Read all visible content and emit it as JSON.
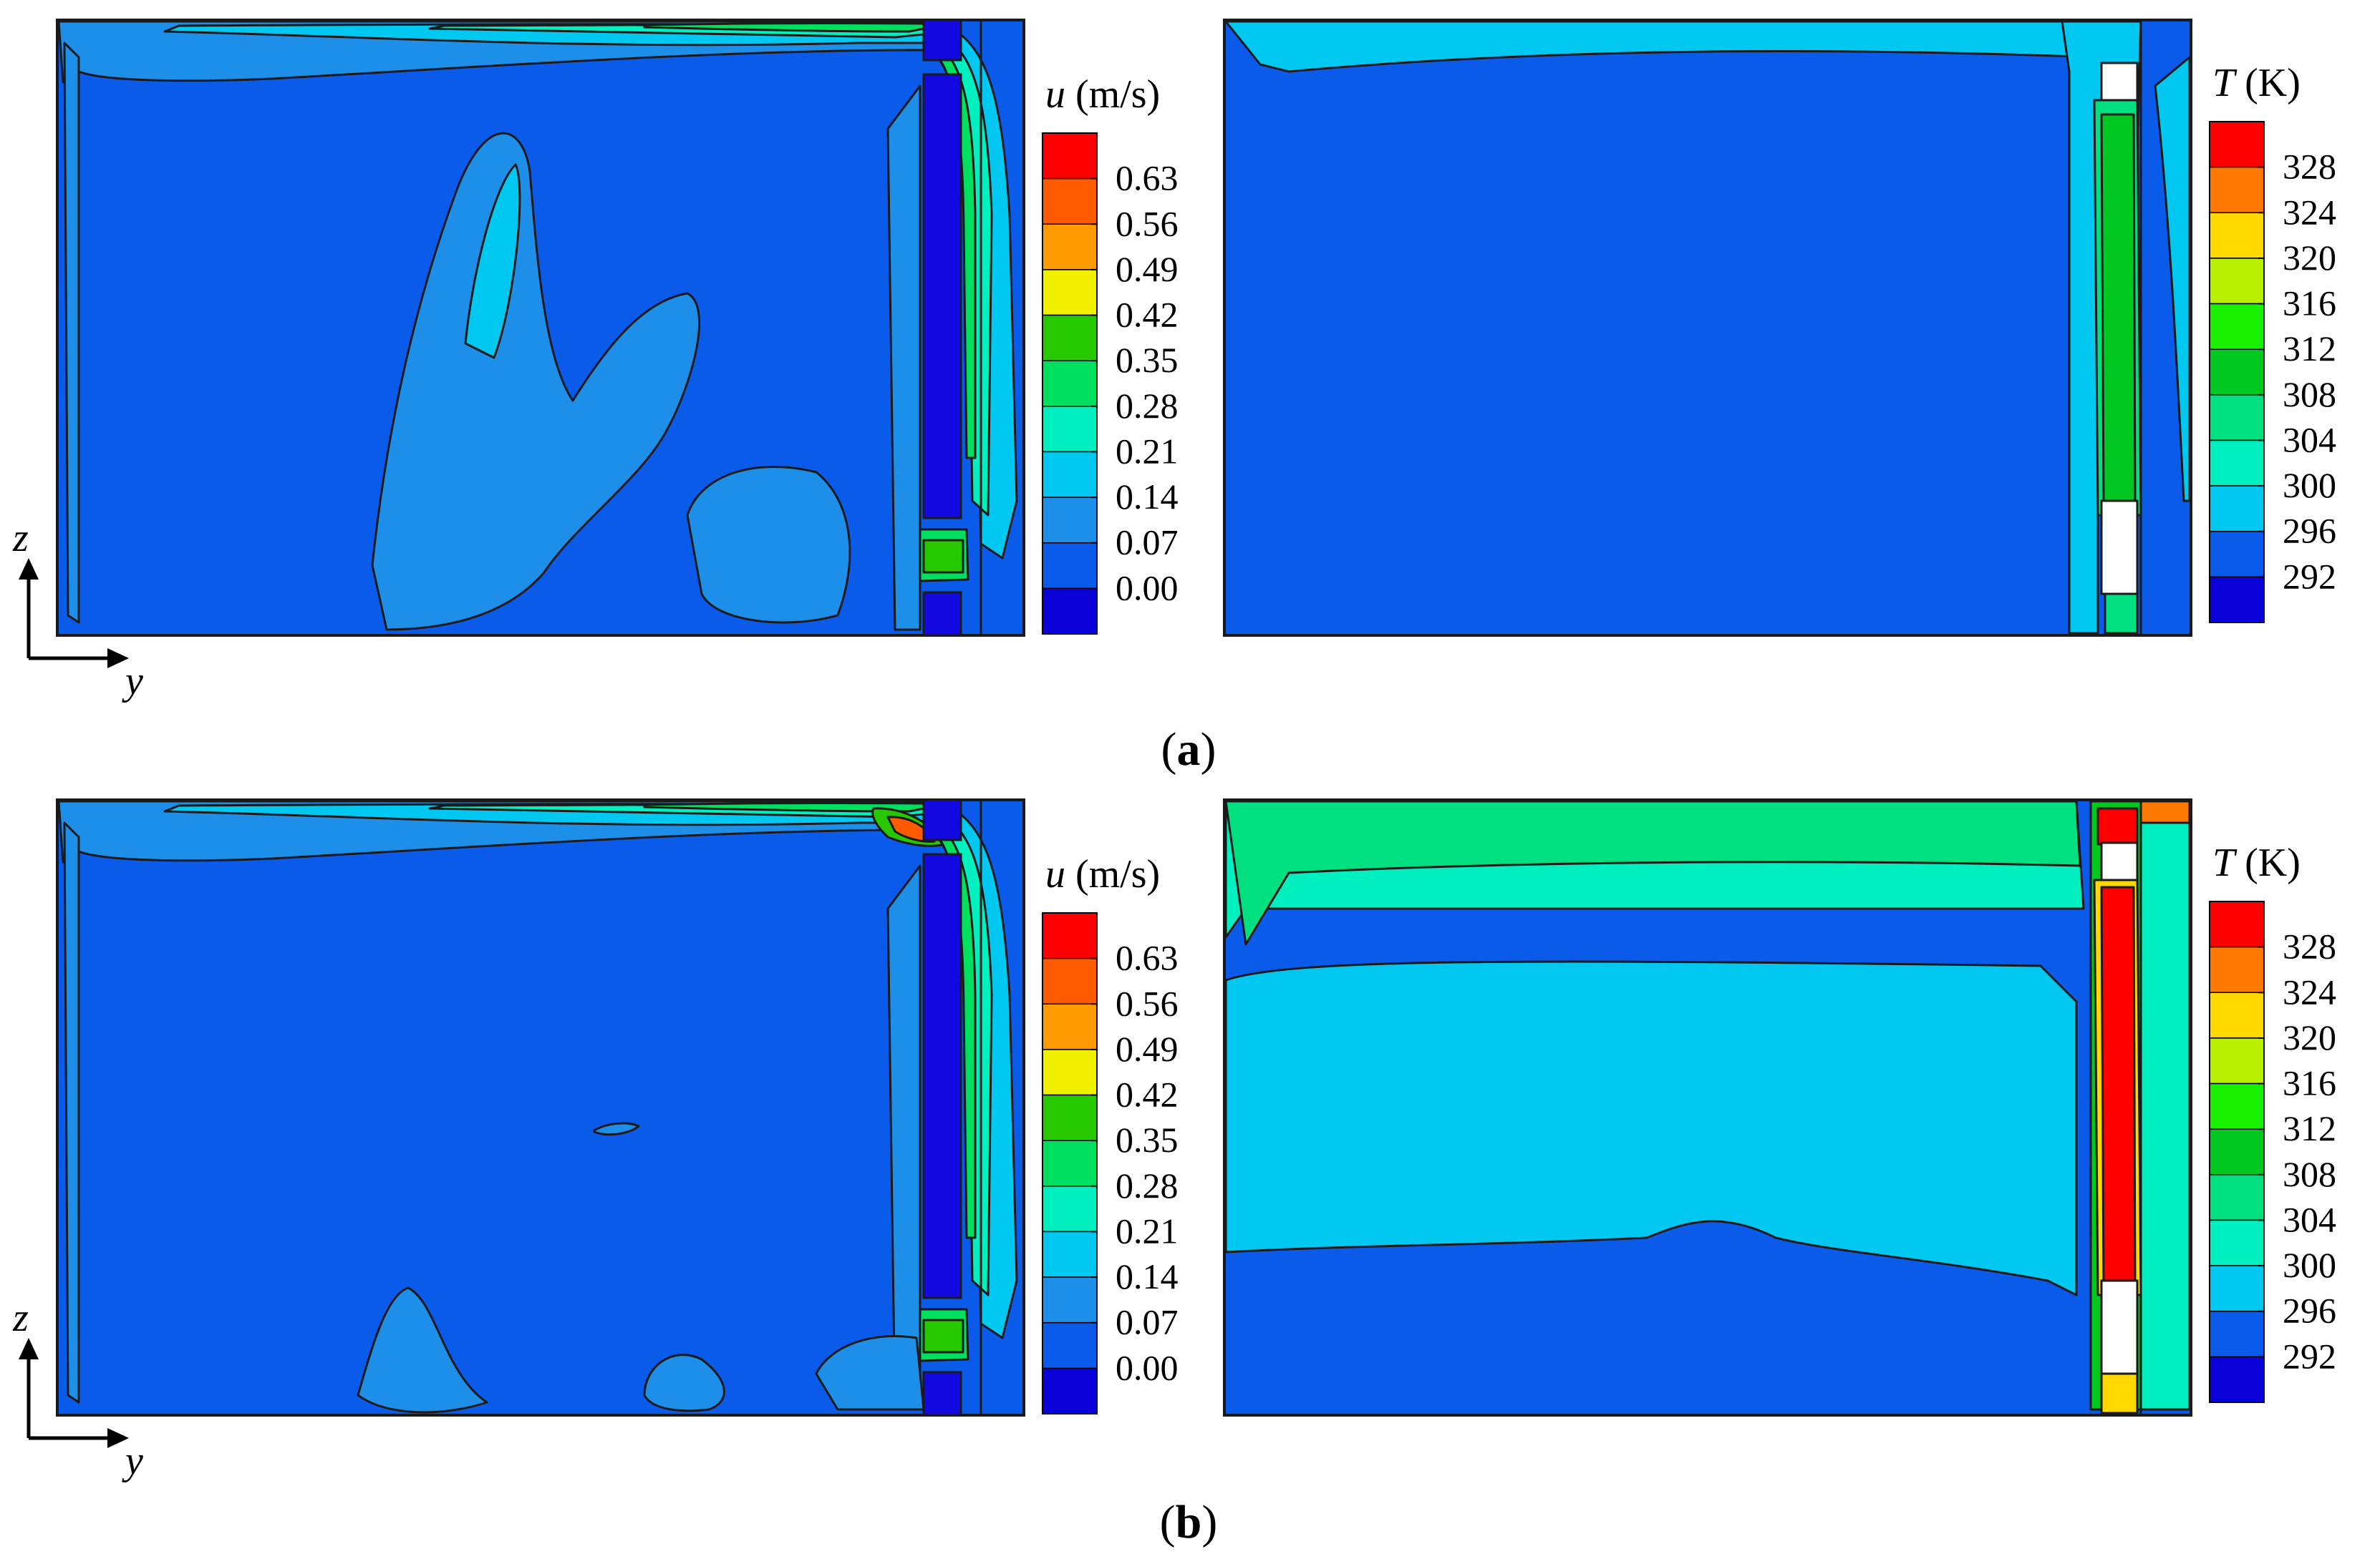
{
  "panels": [
    {
      "label_open": "(",
      "label_letter": "a",
      "label_close": ")"
    },
    {
      "label_open": "(",
      "label_letter": "b",
      "label_close": ")"
    }
  ],
  "axes": {
    "z": "z",
    "y": "y"
  },
  "colors": {
    "levels_u": [
      "#0a00d8",
      "#0a5bea",
      "#1e8fe8",
      "#00c8f0",
      "#00f0c0",
      "#00e060",
      "#28c800",
      "#f0f000",
      "#ff9a00",
      "#ff5a00",
      "#ff0000"
    ],
    "levels_T": [
      "#0a00d8",
      "#0a5bea",
      "#00c8f0",
      "#00f0c0",
      "#00e080",
      "#00c820",
      "#18f000",
      "#b8f000",
      "#ffd800",
      "#ff7800",
      "#ff0000"
    ],
    "block": "#1208e0",
    "outline": "#1a1a1a"
  },
  "chart_data": [
    {
      "type": "heatmap",
      "panel": "a",
      "field": "velocity",
      "legend_symbol": "u",
      "legend_unit": "(m/s)",
      "colorbar_ticks": [
        "0.63",
        "0.56",
        "0.49",
        "0.42",
        "0.35",
        "0.28",
        "0.21",
        "0.14",
        "0.07",
        "0.00"
      ],
      "colorbar_range": [
        0.0,
        0.7
      ]
    },
    {
      "type": "heatmap",
      "panel": "a",
      "field": "temperature",
      "legend_symbol": "T",
      "legend_unit": "(K)",
      "colorbar_ticks": [
        "328",
        "324",
        "320",
        "316",
        "312",
        "308",
        "304",
        "300",
        "296",
        "292"
      ],
      "colorbar_range": [
        292,
        332
      ]
    },
    {
      "type": "heatmap",
      "panel": "b",
      "field": "velocity",
      "legend_symbol": "u",
      "legend_unit": "(m/s)",
      "colorbar_ticks": [
        "0.63",
        "0.56",
        "0.49",
        "0.42",
        "0.35",
        "0.28",
        "0.21",
        "0.14",
        "0.07",
        "0.00"
      ],
      "colorbar_range": [
        0.0,
        0.7
      ]
    },
    {
      "type": "heatmap",
      "panel": "b",
      "field": "temperature",
      "legend_symbol": "T",
      "legend_unit": "(K)",
      "colorbar_ticks": [
        "328",
        "324",
        "320",
        "316",
        "312",
        "308",
        "304",
        "300",
        "296",
        "292"
      ],
      "colorbar_range": [
        292,
        332
      ]
    }
  ]
}
